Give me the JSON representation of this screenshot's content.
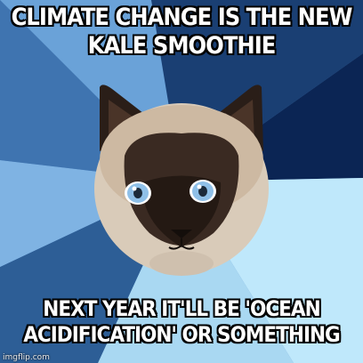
{
  "meme": {
    "top_text": "CLIMATE CHANGE IS THE NEW KALE SMOOTHIE",
    "bottom_text": "NEXT YEAR IT'LL BE 'OCEAN ACIDIFICATION' OR SOMETHING",
    "watermark": "imgflip.com",
    "subject": "siamese-cat-icon",
    "background_colors": [
      "#6aa0d6",
      "#0e2a5c",
      "#a9d6f0",
      "#2e5f97",
      "#c4ecfb",
      "#4f86c3"
    ]
  }
}
